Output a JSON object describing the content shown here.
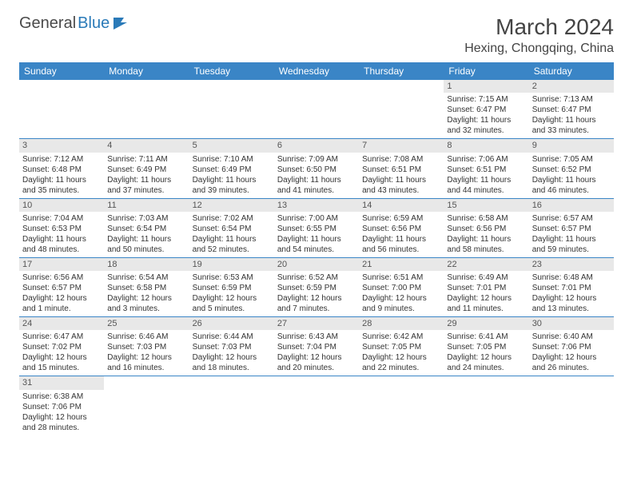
{
  "logo": {
    "text1": "General",
    "text2": "Blue"
  },
  "title": "March 2024",
  "location": "Hexing, Chongqing, China",
  "colors": {
    "header_bg": "#3a85c6",
    "header_fg": "#ffffff",
    "daynum_bg": "#e8e8e8",
    "row_border": "#3a85c6",
    "text": "#333333"
  },
  "weekdays": [
    "Sunday",
    "Monday",
    "Tuesday",
    "Wednesday",
    "Thursday",
    "Friday",
    "Saturday"
  ],
  "weeks": [
    [
      null,
      null,
      null,
      null,
      null,
      {
        "n": "1",
        "sr": "Sunrise: 7:15 AM",
        "ss": "Sunset: 6:47 PM",
        "d1": "Daylight: 11 hours",
        "d2": "and 32 minutes."
      },
      {
        "n": "2",
        "sr": "Sunrise: 7:13 AM",
        "ss": "Sunset: 6:47 PM",
        "d1": "Daylight: 11 hours",
        "d2": "and 33 minutes."
      }
    ],
    [
      {
        "n": "3",
        "sr": "Sunrise: 7:12 AM",
        "ss": "Sunset: 6:48 PM",
        "d1": "Daylight: 11 hours",
        "d2": "and 35 minutes."
      },
      {
        "n": "4",
        "sr": "Sunrise: 7:11 AM",
        "ss": "Sunset: 6:49 PM",
        "d1": "Daylight: 11 hours",
        "d2": "and 37 minutes."
      },
      {
        "n": "5",
        "sr": "Sunrise: 7:10 AM",
        "ss": "Sunset: 6:49 PM",
        "d1": "Daylight: 11 hours",
        "d2": "and 39 minutes."
      },
      {
        "n": "6",
        "sr": "Sunrise: 7:09 AM",
        "ss": "Sunset: 6:50 PM",
        "d1": "Daylight: 11 hours",
        "d2": "and 41 minutes."
      },
      {
        "n": "7",
        "sr": "Sunrise: 7:08 AM",
        "ss": "Sunset: 6:51 PM",
        "d1": "Daylight: 11 hours",
        "d2": "and 43 minutes."
      },
      {
        "n": "8",
        "sr": "Sunrise: 7:06 AM",
        "ss": "Sunset: 6:51 PM",
        "d1": "Daylight: 11 hours",
        "d2": "and 44 minutes."
      },
      {
        "n": "9",
        "sr": "Sunrise: 7:05 AM",
        "ss": "Sunset: 6:52 PM",
        "d1": "Daylight: 11 hours",
        "d2": "and 46 minutes."
      }
    ],
    [
      {
        "n": "10",
        "sr": "Sunrise: 7:04 AM",
        "ss": "Sunset: 6:53 PM",
        "d1": "Daylight: 11 hours",
        "d2": "and 48 minutes."
      },
      {
        "n": "11",
        "sr": "Sunrise: 7:03 AM",
        "ss": "Sunset: 6:54 PM",
        "d1": "Daylight: 11 hours",
        "d2": "and 50 minutes."
      },
      {
        "n": "12",
        "sr": "Sunrise: 7:02 AM",
        "ss": "Sunset: 6:54 PM",
        "d1": "Daylight: 11 hours",
        "d2": "and 52 minutes."
      },
      {
        "n": "13",
        "sr": "Sunrise: 7:00 AM",
        "ss": "Sunset: 6:55 PM",
        "d1": "Daylight: 11 hours",
        "d2": "and 54 minutes."
      },
      {
        "n": "14",
        "sr": "Sunrise: 6:59 AM",
        "ss": "Sunset: 6:56 PM",
        "d1": "Daylight: 11 hours",
        "d2": "and 56 minutes."
      },
      {
        "n": "15",
        "sr": "Sunrise: 6:58 AM",
        "ss": "Sunset: 6:56 PM",
        "d1": "Daylight: 11 hours",
        "d2": "and 58 minutes."
      },
      {
        "n": "16",
        "sr": "Sunrise: 6:57 AM",
        "ss": "Sunset: 6:57 PM",
        "d1": "Daylight: 11 hours",
        "d2": "and 59 minutes."
      }
    ],
    [
      {
        "n": "17",
        "sr": "Sunrise: 6:56 AM",
        "ss": "Sunset: 6:57 PM",
        "d1": "Daylight: 12 hours",
        "d2": "and 1 minute."
      },
      {
        "n": "18",
        "sr": "Sunrise: 6:54 AM",
        "ss": "Sunset: 6:58 PM",
        "d1": "Daylight: 12 hours",
        "d2": "and 3 minutes."
      },
      {
        "n": "19",
        "sr": "Sunrise: 6:53 AM",
        "ss": "Sunset: 6:59 PM",
        "d1": "Daylight: 12 hours",
        "d2": "and 5 minutes."
      },
      {
        "n": "20",
        "sr": "Sunrise: 6:52 AM",
        "ss": "Sunset: 6:59 PM",
        "d1": "Daylight: 12 hours",
        "d2": "and 7 minutes."
      },
      {
        "n": "21",
        "sr": "Sunrise: 6:51 AM",
        "ss": "Sunset: 7:00 PM",
        "d1": "Daylight: 12 hours",
        "d2": "and 9 minutes."
      },
      {
        "n": "22",
        "sr": "Sunrise: 6:49 AM",
        "ss": "Sunset: 7:01 PM",
        "d1": "Daylight: 12 hours",
        "d2": "and 11 minutes."
      },
      {
        "n": "23",
        "sr": "Sunrise: 6:48 AM",
        "ss": "Sunset: 7:01 PM",
        "d1": "Daylight: 12 hours",
        "d2": "and 13 minutes."
      }
    ],
    [
      {
        "n": "24",
        "sr": "Sunrise: 6:47 AM",
        "ss": "Sunset: 7:02 PM",
        "d1": "Daylight: 12 hours",
        "d2": "and 15 minutes."
      },
      {
        "n": "25",
        "sr": "Sunrise: 6:46 AM",
        "ss": "Sunset: 7:03 PM",
        "d1": "Daylight: 12 hours",
        "d2": "and 16 minutes."
      },
      {
        "n": "26",
        "sr": "Sunrise: 6:44 AM",
        "ss": "Sunset: 7:03 PM",
        "d1": "Daylight: 12 hours",
        "d2": "and 18 minutes."
      },
      {
        "n": "27",
        "sr": "Sunrise: 6:43 AM",
        "ss": "Sunset: 7:04 PM",
        "d1": "Daylight: 12 hours",
        "d2": "and 20 minutes."
      },
      {
        "n": "28",
        "sr": "Sunrise: 6:42 AM",
        "ss": "Sunset: 7:05 PM",
        "d1": "Daylight: 12 hours",
        "d2": "and 22 minutes."
      },
      {
        "n": "29",
        "sr": "Sunrise: 6:41 AM",
        "ss": "Sunset: 7:05 PM",
        "d1": "Daylight: 12 hours",
        "d2": "and 24 minutes."
      },
      {
        "n": "30",
        "sr": "Sunrise: 6:40 AM",
        "ss": "Sunset: 7:06 PM",
        "d1": "Daylight: 12 hours",
        "d2": "and 26 minutes."
      }
    ],
    [
      {
        "n": "31",
        "sr": "Sunrise: 6:38 AM",
        "ss": "Sunset: 7:06 PM",
        "d1": "Daylight: 12 hours",
        "d2": "and 28 minutes."
      },
      null,
      null,
      null,
      null,
      null,
      null
    ]
  ]
}
